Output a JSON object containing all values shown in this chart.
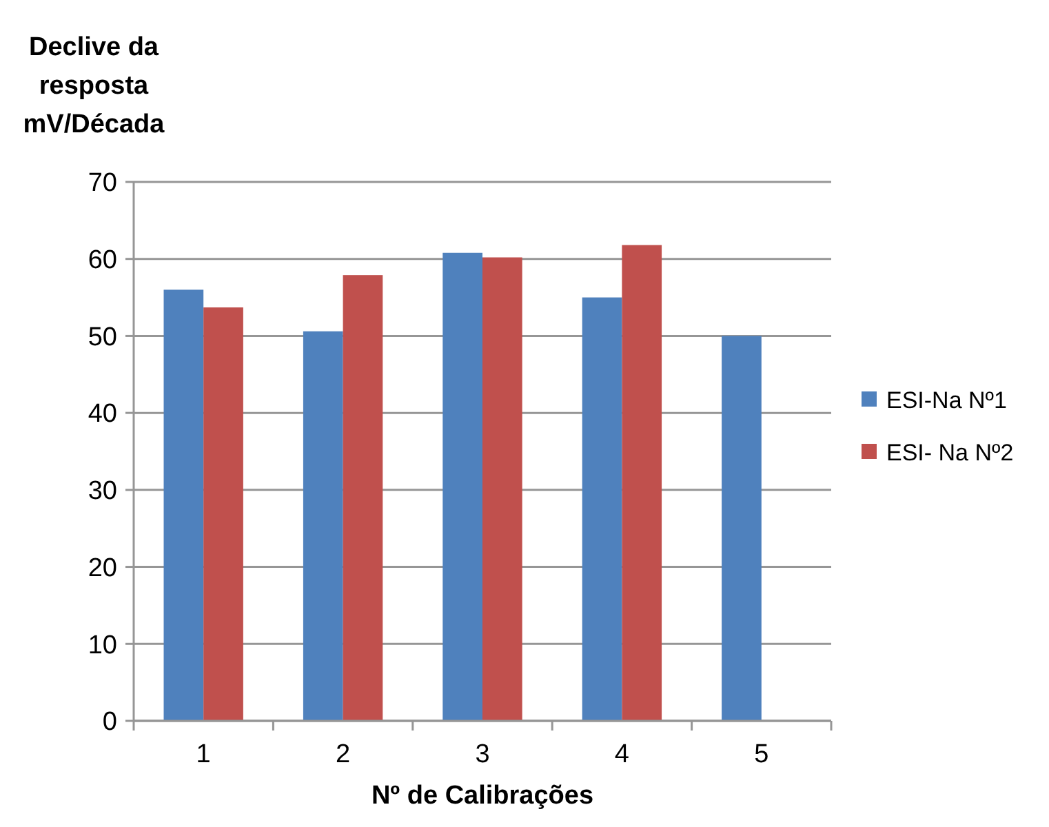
{
  "chart_data": {
    "type": "bar",
    "ylabel": "Declive da resposta mV/Década",
    "xlabel": "Nº de Calibrações",
    "categories": [
      "1",
      "2",
      "3",
      "4",
      "5"
    ],
    "series": [
      {
        "name": "ESI-Na Nº1",
        "color": "#4f81bd",
        "values": [
          56,
          50.6,
          60.8,
          55,
          50
        ]
      },
      {
        "name": "ESI- Na Nº2",
        "color": "#c0504d",
        "values": [
          53.7,
          57.9,
          60.2,
          61.8,
          null
        ]
      }
    ],
    "ylim": [
      0,
      70
    ],
    "yticks": [
      0,
      10,
      20,
      30,
      40,
      50,
      60,
      70
    ],
    "grid": "y",
    "legend": "right"
  }
}
